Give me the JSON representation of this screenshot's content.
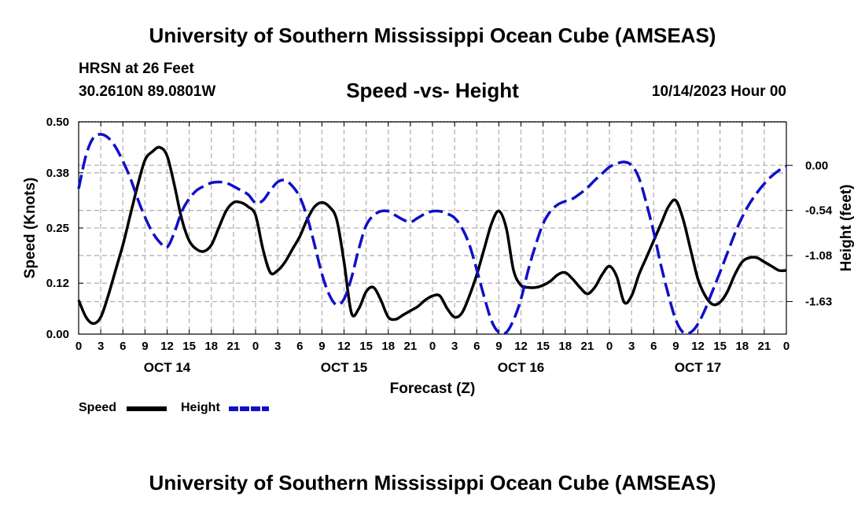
{
  "header": {
    "title": "University of Southern Mississippi Ocean Cube (AMSEAS)",
    "station": "HRSN at 26 Feet",
    "coordinates": "30.2610N  89.0801W",
    "subtitle": "Speed -vs- Height",
    "date_hour": "10/14/2023 Hour 00"
  },
  "footer": {
    "title": "University of Southern Mississippi Ocean Cube (AMSEAS)"
  },
  "colors": {
    "speed": "#000000",
    "height": "#1010c8",
    "grid": "#b4b4b4"
  },
  "legend": {
    "speed_label": "Speed",
    "height_label": "Height"
  },
  "chart_data": {
    "type": "line",
    "title": "Speed -vs- Height",
    "xlabel": "Forecast (Z)",
    "ylabel": "Speed (Knots)",
    "y2label": "Height (feet)",
    "x_unit": "hours from 10/14/2023 00Z",
    "xlim": [
      0,
      96
    ],
    "ylim": [
      0,
      0.5
    ],
    "y2lim": [
      -2.02,
      0.52
    ],
    "x_ticks": [
      0,
      3,
      6,
      9,
      12,
      15,
      18,
      21,
      24,
      27,
      30,
      33,
      36,
      39,
      42,
      45,
      48,
      51,
      54,
      57,
      60,
      63,
      66,
      69,
      72,
      75,
      78,
      81,
      84,
      87,
      90,
      93,
      96
    ],
    "x_tick_labels": [
      "0",
      "3",
      "6",
      "9",
      "12",
      "15",
      "18",
      "21",
      "0",
      "3",
      "6",
      "9",
      "12",
      "15",
      "18",
      "21",
      "0",
      "3",
      "6",
      "9",
      "12",
      "15",
      "18",
      "21",
      "0",
      "3",
      "6",
      "9",
      "12",
      "15",
      "18",
      "21",
      "0"
    ],
    "day_labels": [
      {
        "x": 12,
        "label": "OCT 14"
      },
      {
        "x": 36,
        "label": "OCT 15"
      },
      {
        "x": 60,
        "label": "OCT 16"
      },
      {
        "x": 84,
        "label": "OCT 17"
      }
    ],
    "y_ticks": [
      0.0,
      0.12,
      0.25,
      0.38,
      0.5
    ],
    "y_tick_labels": [
      "0.00",
      "0.12",
      "0.25",
      "0.38",
      "0.50"
    ],
    "y2_ticks": [
      0.0,
      -0.54,
      -1.08,
      -1.63
    ],
    "y2_tick_labels": [
      "0.00",
      "-0.54",
      "-1.08",
      "-1.63"
    ],
    "series": [
      {
        "name": "Speed",
        "axis": "left",
        "style": "solid",
        "x": [
          0,
          1,
          2,
          3,
          4,
          5,
          6,
          7,
          8,
          9,
          10,
          11,
          12,
          13,
          14,
          15,
          16,
          17,
          18,
          19,
          20,
          21,
          22,
          23,
          24,
          25,
          26,
          27,
          28,
          29,
          30,
          31,
          32,
          33,
          34,
          35,
          36,
          37,
          38,
          39,
          40,
          41,
          42,
          43,
          44,
          45,
          46,
          47,
          48,
          49,
          50,
          51,
          52,
          53,
          54,
          55,
          56,
          57,
          58,
          59,
          60,
          61,
          62,
          63,
          64,
          65,
          66,
          67,
          68,
          69,
          70,
          71,
          72,
          73,
          74,
          75,
          76,
          77,
          78,
          79,
          80,
          81,
          82,
          83,
          84,
          85,
          86,
          87,
          88,
          89,
          90,
          91,
          92,
          93,
          94,
          95,
          96
        ],
        "values": [
          0.08,
          0.04,
          0.025,
          0.04,
          0.09,
          0.15,
          0.21,
          0.28,
          0.35,
          0.41,
          0.43,
          0.44,
          0.42,
          0.35,
          0.27,
          0.22,
          0.2,
          0.195,
          0.21,
          0.25,
          0.29,
          0.31,
          0.31,
          0.3,
          0.28,
          0.2,
          0.145,
          0.15,
          0.17,
          0.2,
          0.23,
          0.27,
          0.3,
          0.31,
          0.3,
          0.27,
          0.17,
          0.05,
          0.06,
          0.1,
          0.11,
          0.08,
          0.04,
          0.035,
          0.045,
          0.055,
          0.065,
          0.08,
          0.09,
          0.09,
          0.06,
          0.04,
          0.05,
          0.09,
          0.14,
          0.2,
          0.26,
          0.29,
          0.25,
          0.15,
          0.115,
          0.11,
          0.11,
          0.115,
          0.125,
          0.14,
          0.145,
          0.13,
          0.11,
          0.095,
          0.11,
          0.14,
          0.16,
          0.135,
          0.075,
          0.09,
          0.14,
          0.18,
          0.22,
          0.26,
          0.3,
          0.315,
          0.27,
          0.2,
          0.13,
          0.09,
          0.07,
          0.075,
          0.1,
          0.14,
          0.17,
          0.18,
          0.18,
          0.17,
          0.16,
          0.15,
          0.15
        ]
      },
      {
        "name": "Height",
        "axis": "right",
        "style": "dashed",
        "x": [
          0,
          1,
          2,
          3,
          4,
          5,
          6,
          7,
          8,
          9,
          10,
          11,
          12,
          13,
          14,
          15,
          16,
          17,
          18,
          19,
          20,
          21,
          22,
          23,
          24,
          25,
          26,
          27,
          28,
          29,
          30,
          31,
          32,
          33,
          34,
          35,
          36,
          37,
          38,
          39,
          40,
          41,
          42,
          43,
          44,
          45,
          46,
          47,
          48,
          49,
          50,
          51,
          52,
          53,
          54,
          55,
          56,
          57,
          58,
          59,
          60,
          61,
          62,
          63,
          64,
          65,
          66,
          67,
          68,
          69,
          70,
          71,
          72,
          73,
          74,
          75,
          76,
          77,
          78,
          79,
          80,
          81,
          82,
          83,
          84,
          85,
          86,
          87,
          88,
          89,
          90,
          91,
          92,
          93,
          94,
          95,
          96
        ],
        "values": [
          -0.28,
          0.12,
          0.33,
          0.37,
          0.33,
          0.22,
          0.05,
          -0.15,
          -0.4,
          -0.62,
          -0.8,
          -0.92,
          -0.98,
          -0.8,
          -0.55,
          -0.4,
          -0.3,
          -0.25,
          -0.21,
          -0.2,
          -0.21,
          -0.25,
          -0.3,
          -0.35,
          -0.45,
          -0.42,
          -0.3,
          -0.2,
          -0.18,
          -0.25,
          -0.38,
          -0.62,
          -0.95,
          -1.3,
          -1.55,
          -1.67,
          -1.6,
          -1.35,
          -1.0,
          -0.72,
          -0.6,
          -0.55,
          -0.55,
          -0.6,
          -0.65,
          -0.68,
          -0.63,
          -0.58,
          -0.55,
          -0.55,
          -0.58,
          -0.63,
          -0.75,
          -0.95,
          -1.25,
          -1.57,
          -1.86,
          -2.0,
          -2.0,
          -1.85,
          -1.6,
          -1.25,
          -0.95,
          -0.7,
          -0.55,
          -0.47,
          -0.43,
          -0.4,
          -0.34,
          -0.27,
          -0.18,
          -0.1,
          -0.02,
          0.02,
          0.04,
          0.0,
          -0.15,
          -0.45,
          -0.8,
          -1.2,
          -1.55,
          -1.85,
          -2.0,
          -2.0,
          -1.9,
          -1.72,
          -1.5,
          -1.28,
          -1.05,
          -0.82,
          -0.62,
          -0.46,
          -0.33,
          -0.22,
          -0.13,
          -0.06,
          -0.01
        ]
      }
    ]
  }
}
